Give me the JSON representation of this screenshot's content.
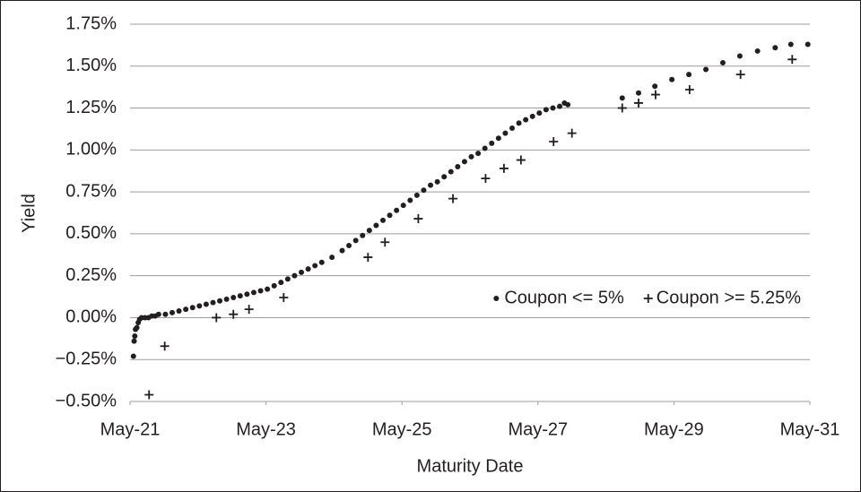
{
  "chart_data": {
    "type": "scatter",
    "x_label": "Maturity Date",
    "y_label": "Yield",
    "xlim": [
      2021.33,
      2031.33
    ],
    "xticks": [
      {
        "value": 2021.33,
        "label": "May-21"
      },
      {
        "value": 2023.33,
        "label": "May-23"
      },
      {
        "value": 2025.33,
        "label": "May-25"
      },
      {
        "value": 2027.33,
        "label": "May-27"
      },
      {
        "value": 2029.33,
        "label": "May-29"
      },
      {
        "value": 2031.33,
        "label": "May-31"
      }
    ],
    "ylim": [
      -0.5,
      1.75
    ],
    "yticks": [
      {
        "value": -0.5,
        "label": "−0.50%"
      },
      {
        "value": -0.25,
        "label": "−0.25%"
      },
      {
        "value": 0,
        "label": "0.00%"
      },
      {
        "value": 0.25,
        "label": "0.25%"
      },
      {
        "value": 0.5,
        "label": "0.50%"
      },
      {
        "value": 0.75,
        "label": "0.75%"
      },
      {
        "value": 1,
        "label": "1.00%"
      },
      {
        "value": 1.25,
        "label": "1.25%"
      },
      {
        "value": 1.5,
        "label": "1.50%"
      },
      {
        "value": 1.75,
        "label": "1.75%"
      }
    ],
    "grid": true,
    "legend": "lower right",
    "series": [
      {
        "name": "Coupon <= 5%",
        "marker": "dot",
        "color": "#231f20",
        "x": [
          2021.38,
          2021.39,
          2021.4,
          2021.41,
          2021.43,
          2021.45,
          2021.47,
          2021.5,
          2021.55,
          2021.6,
          2021.65,
          2021.7,
          2021.75,
          2021.85,
          2021.95,
          2022.05,
          2022.15,
          2022.25,
          2022.35,
          2022.45,
          2022.55,
          2022.65,
          2022.75,
          2022.85,
          2022.95,
          2023.05,
          2023.15,
          2023.25,
          2023.35,
          2023.45,
          2023.55,
          2023.65,
          2023.75,
          2023.85,
          2023.95,
          2024.05,
          2024.15,
          2024.3,
          2024.45,
          2024.55,
          2024.65,
          2024.75,
          2024.85,
          2024.95,
          2025.05,
          2025.15,
          2025.25,
          2025.35,
          2025.45,
          2025.55,
          2025.65,
          2025.75,
          2025.85,
          2025.95,
          2026.05,
          2026.15,
          2026.25,
          2026.35,
          2026.45,
          2026.55,
          2026.65,
          2026.75,
          2026.85,
          2026.95,
          2027.05,
          2027.15,
          2027.25,
          2027.35,
          2027.45,
          2027.55,
          2027.65,
          2027.72,
          2027.77,
          2028.57,
          2028.81,
          2029.05,
          2029.3,
          2029.55,
          2029.8,
          2030.05,
          2030.3,
          2030.56,
          2030.82,
          2031.05,
          2031.3
        ],
        "values": [
          -0.23,
          -0.14,
          -0.11,
          -0.07,
          -0.06,
          -0.03,
          -0.01,
          0.0,
          0.0,
          0.0,
          0.01,
          0.01,
          0.02,
          0.02,
          0.03,
          0.04,
          0.05,
          0.06,
          0.07,
          0.08,
          0.09,
          0.1,
          0.11,
          0.12,
          0.13,
          0.14,
          0.15,
          0.16,
          0.17,
          0.19,
          0.21,
          0.23,
          0.25,
          0.27,
          0.29,
          0.31,
          0.33,
          0.36,
          0.4,
          0.43,
          0.46,
          0.49,
          0.52,
          0.55,
          0.58,
          0.61,
          0.64,
          0.67,
          0.7,
          0.73,
          0.76,
          0.79,
          0.81,
          0.84,
          0.87,
          0.9,
          0.93,
          0.96,
          0.98,
          1.01,
          1.04,
          1.07,
          1.1,
          1.13,
          1.16,
          1.18,
          1.2,
          1.22,
          1.24,
          1.25,
          1.26,
          1.28,
          1.27,
          1.31,
          1.34,
          1.38,
          1.42,
          1.45,
          1.48,
          1.52,
          1.56,
          1.59,
          1.61,
          1.63,
          1.63
        ]
      },
      {
        "name": "Coupon >= 5.25%",
        "marker": "plus",
        "color": "#231f20",
        "x": [
          2021.61,
          2021.84,
          2022.6,
          2022.85,
          2023.08,
          2023.59,
          2024.83,
          2025.08,
          2025.57,
          2026.08,
          2026.56,
          2026.83,
          2027.08,
          2027.56,
          2027.83,
          2028.57,
          2028.81,
          2029.06,
          2029.56,
          2030.31,
          2031.07
        ],
        "values": [
          -0.46,
          -0.17,
          0.0,
          0.02,
          0.05,
          0.12,
          0.36,
          0.45,
          0.59,
          0.71,
          0.83,
          0.89,
          0.94,
          1.05,
          1.1,
          1.25,
          1.28,
          1.33,
          1.36,
          1.45,
          1.54
        ]
      }
    ]
  }
}
